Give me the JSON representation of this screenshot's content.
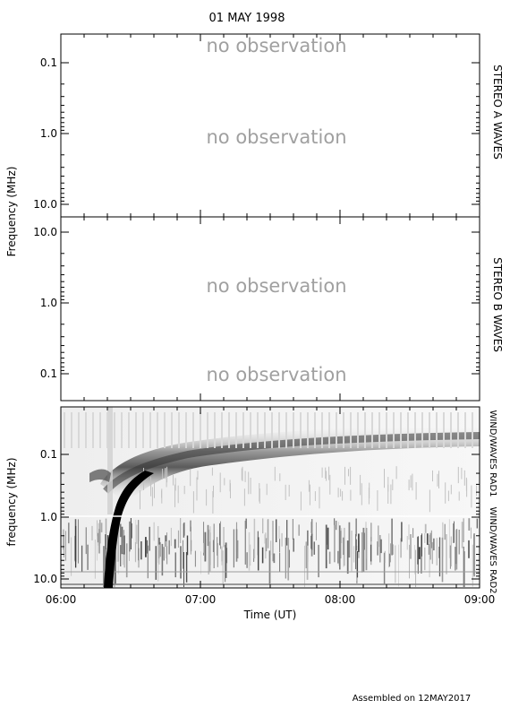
{
  "title": "01 MAY 1998",
  "footer": "Assembled on 12MAY2017",
  "x_axis": {
    "label": "Time (UT)",
    "ticks": [
      "06:00",
      "07:00",
      "08:00",
      "09:00"
    ]
  },
  "shared_ylabel": "Frequency (MHz)",
  "panels": [
    {
      "id": "stereo-a",
      "side_label": "STEREO A WAVES",
      "y_ticks": [
        "0.1",
        "1.0",
        "10.0"
      ],
      "status_text": [
        "no observation",
        "no observation"
      ]
    },
    {
      "id": "stereo-b",
      "side_label": "STEREO B WAVES",
      "y_ticks": [
        "10.0",
        "1.0",
        "0.1"
      ],
      "status_text": [
        "no observation",
        "no observation"
      ]
    },
    {
      "id": "wind",
      "ylabel": "frequency (MHz)",
      "side_label_upper": "WIND/WAVES RAD1",
      "side_label_lower": "WIND/WAVES RAD2",
      "y_ticks": [
        "0.1",
        "1.0",
        "10.0"
      ]
    }
  ],
  "chart_data": {
    "type": "heatmap",
    "title": "01 MAY 1998",
    "xlabel": "Time (UT)",
    "x_range": [
      "06:00",
      "09:00"
    ],
    "y_scale": "log",
    "panels": [
      {
        "name": "STEREO A WAVES",
        "ylabel": "Frequency (MHz)",
        "y_range": [
          0.04,
          14
        ],
        "data": "no observation"
      },
      {
        "name": "STEREO B WAVES",
        "ylabel": "Frequency (MHz)",
        "y_range": [
          14,
          0.04
        ],
        "data": "no observation"
      },
      {
        "name": "WIND/WAVES RAD1 / RAD2",
        "ylabel": "frequency (MHz)",
        "y_range": [
          0.02,
          14
        ],
        "features": [
          {
            "kind": "type III burst",
            "start": "06:17",
            "end": "06:40",
            "freq_from": 14,
            "freq_to": 0.05
          },
          {
            "kind": "broad dark band",
            "start": "06:30",
            "end": "09:00",
            "freq_from": 0.3,
            "freq_to": 0.05
          }
        ]
      }
    ]
  },
  "colors": {
    "axes": "#000000",
    "status_text": "#a0a0a0",
    "spectrogram_background": "#f4f4f4",
    "burst": "#000000"
  }
}
